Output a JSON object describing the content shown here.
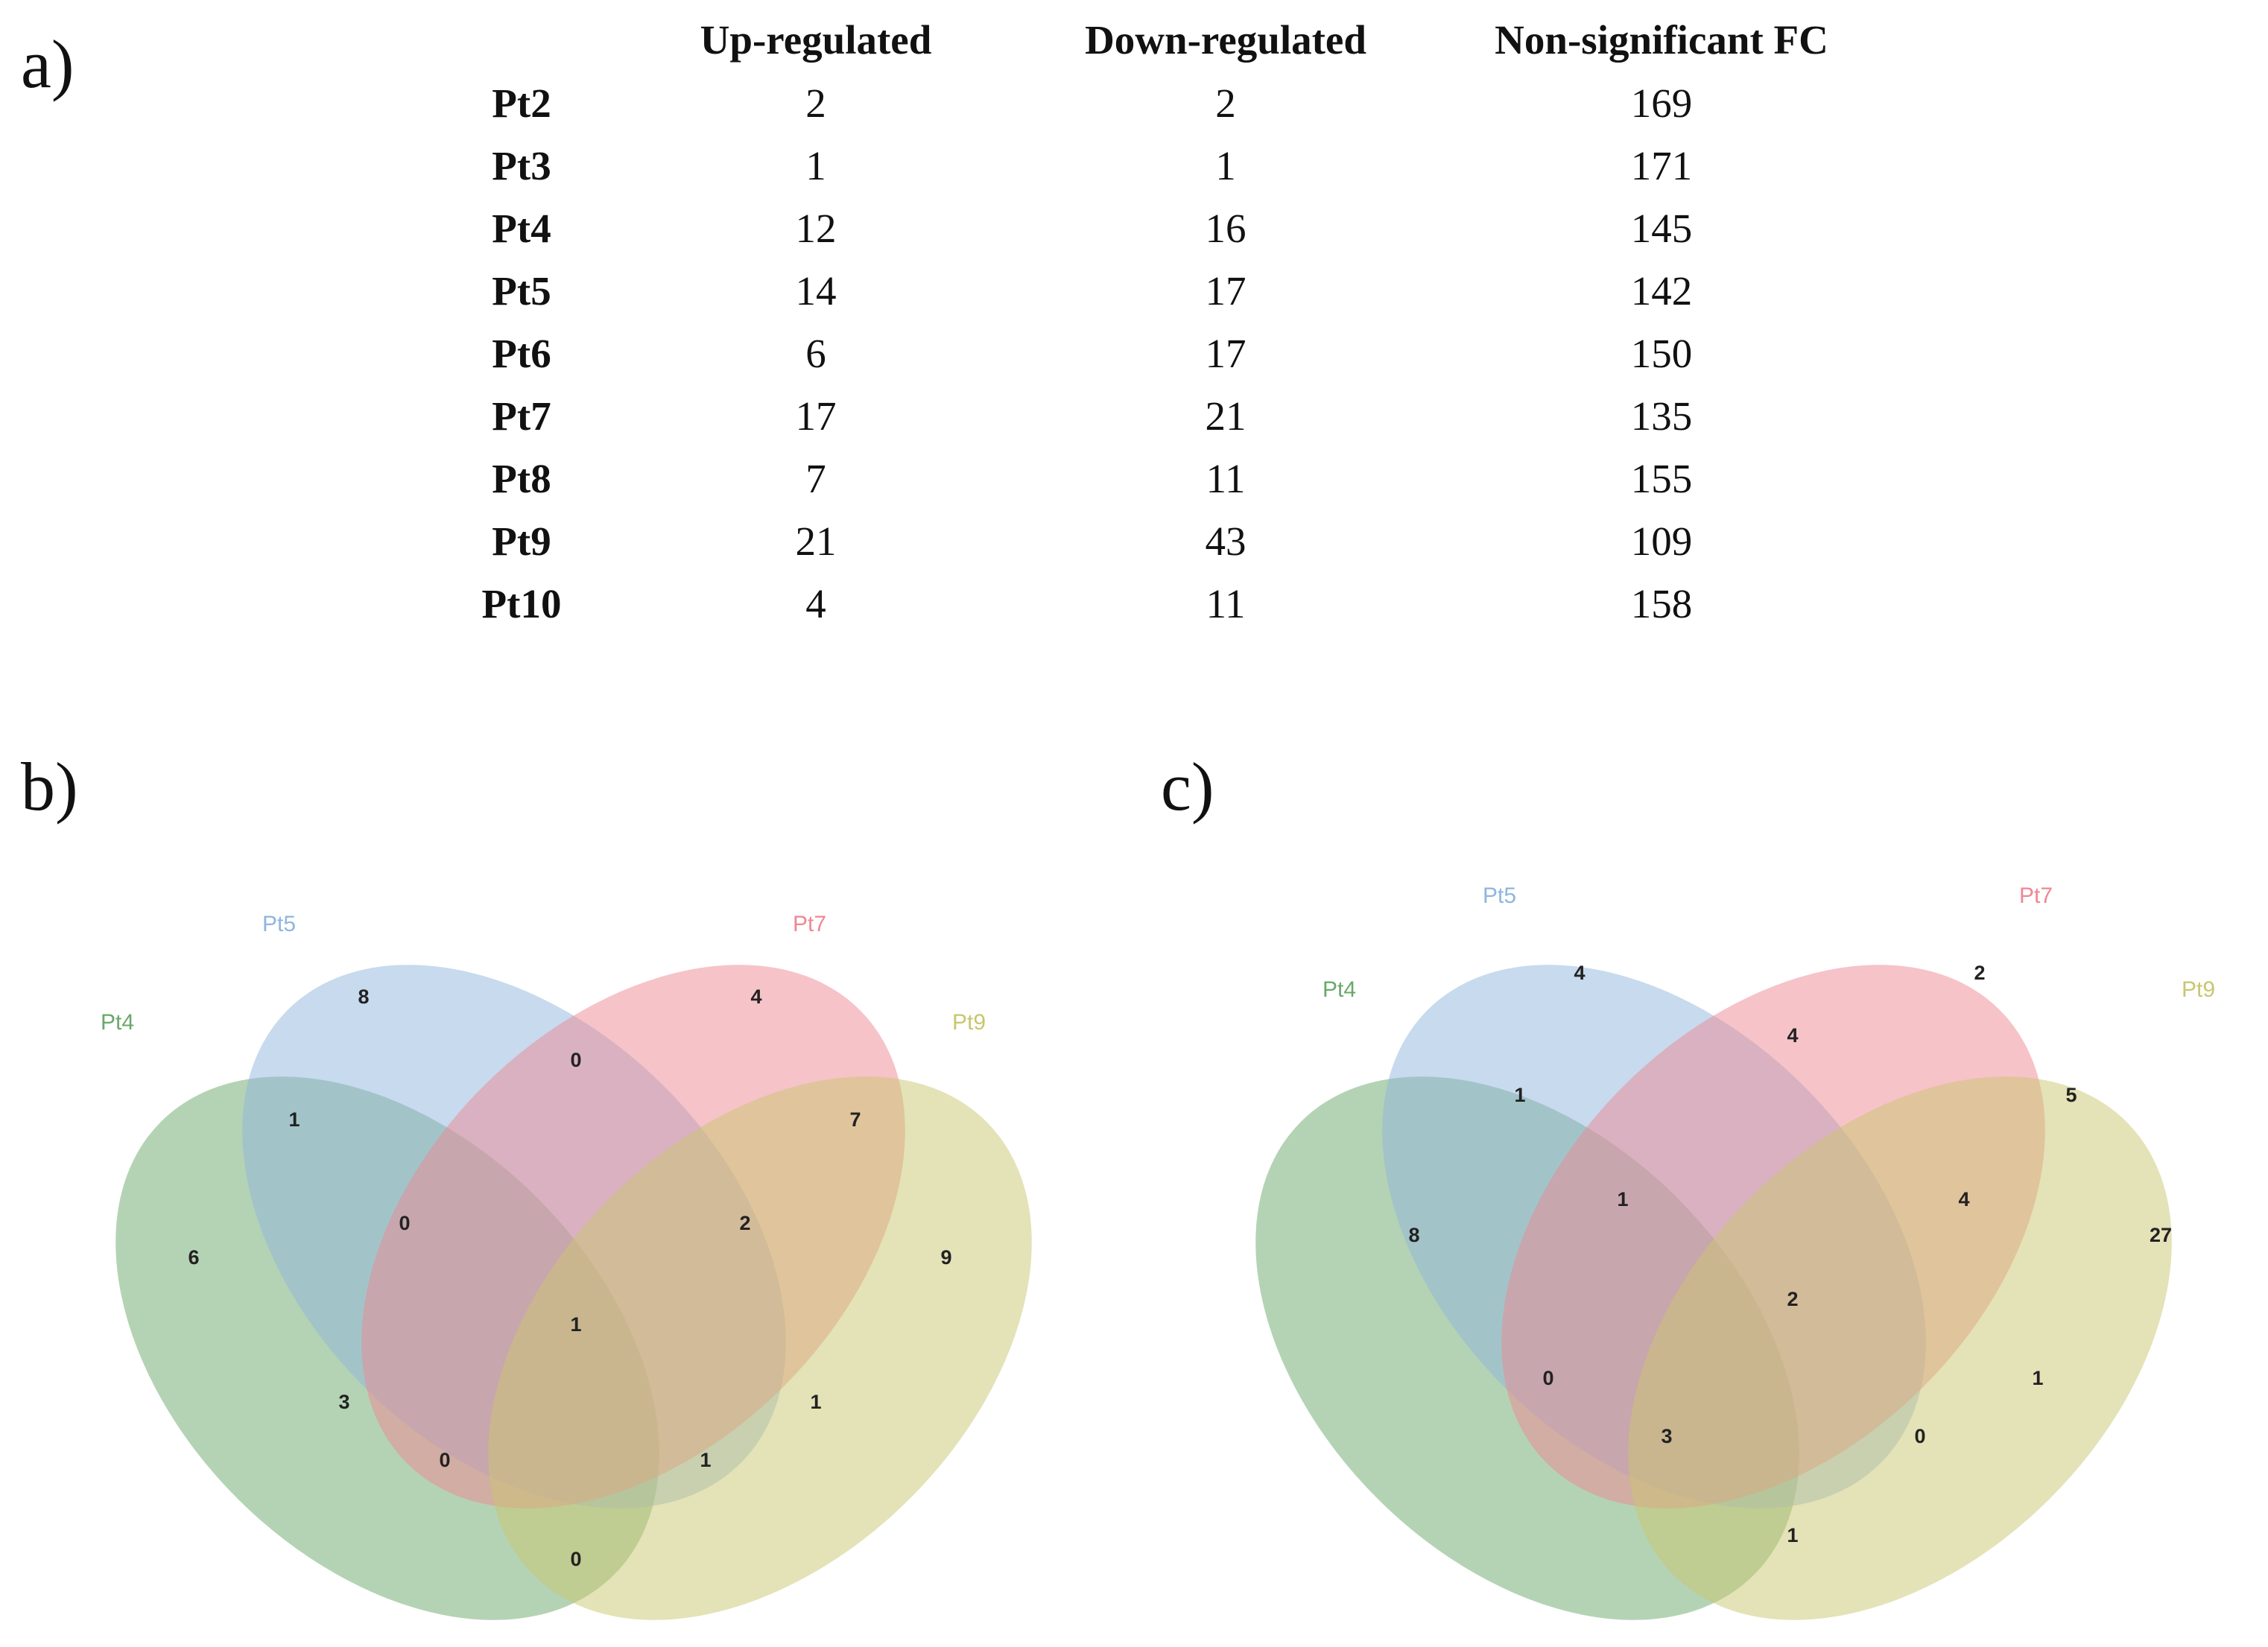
{
  "panels": {
    "a": "a)",
    "b": "b)",
    "c": "c)"
  },
  "table": {
    "headers": [
      "",
      "Up-regulated",
      "Down-regulated",
      "Non-significant FC"
    ],
    "rows": [
      {
        "patient": "Pt2",
        "up": "2",
        "down": "2",
        "nonsig": "169"
      },
      {
        "patient": "Pt3",
        "up": "1",
        "down": "1",
        "nonsig": "171"
      },
      {
        "patient": "Pt4",
        "up": "12",
        "down": "16",
        "nonsig": "145"
      },
      {
        "patient": "Pt5",
        "up": "14",
        "down": "17",
        "nonsig": "142"
      },
      {
        "patient": "Pt6",
        "up": "6",
        "down": "17",
        "nonsig": "150"
      },
      {
        "patient": "Pt7",
        "up": "17",
        "down": "21",
        "nonsig": "135"
      },
      {
        "patient": "Pt8",
        "up": "7",
        "down": "11",
        "nonsig": "155"
      },
      {
        "patient": "Pt9",
        "up": "21",
        "down": "43",
        "nonsig": "109"
      },
      {
        "patient": "Pt10",
        "up": "4",
        "down": "11",
        "nonsig": "158"
      }
    ]
  },
  "venn_b": {
    "sets": [
      {
        "name": "Pt4",
        "color": "#6aa86a"
      },
      {
        "name": "Pt5",
        "color": "#8fb6dd"
      },
      {
        "name": "Pt7",
        "color": "#ee8892"
      },
      {
        "name": "Pt9",
        "color": "#c9c66f"
      }
    ],
    "regions": {
      "Pt4": "6",
      "Pt5": "8",
      "Pt7": "4",
      "Pt9": "9",
      "Pt4_Pt5": "1",
      "Pt5_Pt7": "0",
      "Pt7_Pt9": "7",
      "Pt4_Pt9": "0",
      "Pt4_Pt5_Pt7": "0",
      "Pt5_Pt7_Pt9": "2",
      "Pt4_Pt7": "3",
      "Pt5_Pt9": "1",
      "Pt4_Pt7_Pt9": "0",
      "Pt4_Pt5_Pt9": "1",
      "all": "1"
    }
  },
  "venn_c": {
    "sets": [
      {
        "name": "Pt4",
        "color": "#6aa86a"
      },
      {
        "name": "Pt5",
        "color": "#8fb6dd"
      },
      {
        "name": "Pt7",
        "color": "#ee8892"
      },
      {
        "name": "Pt9",
        "color": "#c9c66f"
      }
    ],
    "regions": {
      "Pt4": "8",
      "Pt5": "4",
      "Pt7": "2",
      "Pt9": "27",
      "Pt4_Pt5": "1",
      "Pt5_Pt7": "4",
      "Pt7_Pt9": "5",
      "Pt4_Pt9": "1",
      "Pt4_Pt5_Pt7": "1",
      "Pt5_Pt7_Pt9": "4",
      "Pt4_Pt7": "0",
      "Pt5_Pt9": "1",
      "Pt4_Pt7_Pt9": "3",
      "Pt4_Pt5_Pt9": "0",
      "all": "2"
    }
  }
}
